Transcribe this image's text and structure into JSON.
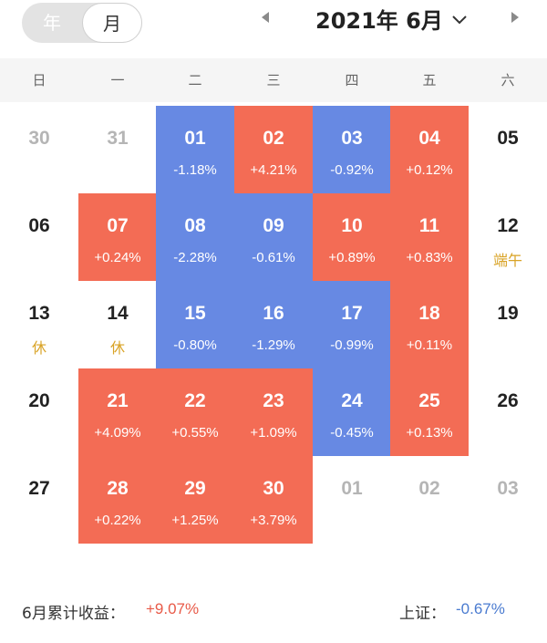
{
  "header": {
    "view_toggle": {
      "year_label": "年",
      "month_label": "月",
      "selected": "month"
    },
    "title": "2021年 6月",
    "prev_icon": "chevron-left-icon",
    "next_icon": "chevron-right-icon",
    "dropdown_icon": "chevron-down-icon"
  },
  "weekdays": [
    "日",
    "一",
    "二",
    "三",
    "四",
    "五",
    "六"
  ],
  "colors": {
    "up": "#f36c55",
    "down": "#6789e3",
    "holiday": "#d9a326",
    "muted": "#b5b5b5"
  },
  "calendar": {
    "weeks": [
      [
        {
          "day": "30",
          "state": "other"
        },
        {
          "day": "31",
          "state": "other"
        },
        {
          "day": "01",
          "state": "down",
          "change": "-1.18%"
        },
        {
          "day": "02",
          "state": "up",
          "change": "+4.21%"
        },
        {
          "day": "03",
          "state": "down",
          "change": "-0.92%"
        },
        {
          "day": "04",
          "state": "up",
          "change": "+0.12%"
        },
        {
          "day": "05",
          "state": "none"
        }
      ],
      [
        {
          "day": "06",
          "state": "none"
        },
        {
          "day": "07",
          "state": "up",
          "change": "+0.24%"
        },
        {
          "day": "08",
          "state": "down",
          "change": "-2.28%"
        },
        {
          "day": "09",
          "state": "down",
          "change": "-0.61%"
        },
        {
          "day": "10",
          "state": "up",
          "change": "+0.89%"
        },
        {
          "day": "11",
          "state": "up",
          "change": "+0.83%"
        },
        {
          "day": "12",
          "state": "none",
          "tag": "端午"
        }
      ],
      [
        {
          "day": "13",
          "state": "none",
          "tag": "休"
        },
        {
          "day": "14",
          "state": "none",
          "tag": "休"
        },
        {
          "day": "15",
          "state": "down",
          "change": "-0.80%"
        },
        {
          "day": "16",
          "state": "down",
          "change": "-1.29%"
        },
        {
          "day": "17",
          "state": "down",
          "change": "-0.99%"
        },
        {
          "day": "18",
          "state": "up",
          "change": "+0.11%"
        },
        {
          "day": "19",
          "state": "none"
        }
      ],
      [
        {
          "day": "20",
          "state": "none"
        },
        {
          "day": "21",
          "state": "up",
          "change": "+4.09%"
        },
        {
          "day": "22",
          "state": "up",
          "change": "+0.55%"
        },
        {
          "day": "23",
          "state": "up",
          "change": "+1.09%"
        },
        {
          "day": "24",
          "state": "down",
          "change": "-0.45%"
        },
        {
          "day": "25",
          "state": "up",
          "change": "+0.13%"
        },
        {
          "day": "26",
          "state": "none"
        }
      ],
      [
        {
          "day": "27",
          "state": "none"
        },
        {
          "day": "28",
          "state": "up",
          "change": "+0.22%"
        },
        {
          "day": "29",
          "state": "up",
          "change": "+1.25%"
        },
        {
          "day": "30",
          "state": "up",
          "change": "+3.79%"
        },
        {
          "day": "01",
          "state": "other"
        },
        {
          "day": "02",
          "state": "other"
        },
        {
          "day": "03",
          "state": "other"
        }
      ]
    ]
  },
  "footer": {
    "cumulative_label": "6月累计收益：",
    "cumulative_value": "+9.07%",
    "index_label": "上证：",
    "index_value": "-0.67%"
  }
}
